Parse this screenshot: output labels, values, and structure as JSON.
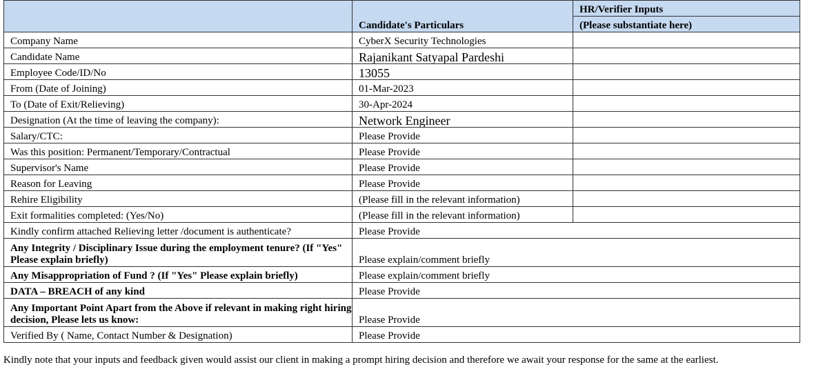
{
  "header": {
    "col2": "Candidate's Particulars",
    "col3_line1": "HR/Verifier Inputs",
    "col3_line2": "(Please substantiate here)"
  },
  "rows": [
    {
      "label": "Company Name",
      "value": "CyberX Security Technologies"
    },
    {
      "label": "Candidate Name",
      "value": "Rajanikant Satyapal Pardeshi"
    },
    {
      "label": "Employee Code/ID/No",
      "value": "13055"
    },
    {
      "label": "From (Date of Joining)",
      "value": "01-Mar-2023"
    },
    {
      "label": "To (Date of Exit/Relieving)",
      "value": "30-Apr-2024"
    },
    {
      "label": "Designation (At the time of leaving the company):",
      "value": "Network Engineer"
    },
    {
      "label": "Salary/CTC:",
      "value": "Please Provide"
    },
    {
      "label": "Was this position: Permanent/Temporary/Contractual",
      "value": "Please Provide"
    },
    {
      "label": "Supervisor's Name",
      "value": "Please Provide"
    },
    {
      "label": "Reason for Leaving",
      "value": "Please Provide"
    },
    {
      "label": "Rehire Eligibility",
      "value": "(Please fill in the relevant information)"
    },
    {
      "label": "Exit formalities completed: (Yes/No)",
      "value": "(Please fill in the relevant information)"
    },
    {
      "label": "Kindly confirm attached Relieving letter /document is authenticate?",
      "value": "Please Provide"
    },
    {
      "label": "Any Integrity / Disciplinary Issue during the employment tenure? (If \"Yes\" Please explain briefly)",
      "value": "Please explain/comment briefly"
    },
    {
      "label": "Any Misappropriation of Fund ? (If \"Yes\" Please explain briefly)",
      "value": "Please explain/comment briefly"
    },
    {
      "label": "DATA – BREACH of any kind",
      "value": "Please Provide"
    },
    {
      "label": "Any Important Point Apart from the Above if relevant in making right hiring decision, Please lets us know:",
      "value": "Please Provide"
    },
    {
      "label": "Verified By ( Name, Contact Number & Designation)",
      "value": "Please Provide"
    }
  ],
  "footer_note": "Kindly note that your inputs and feedback given would assist our client in making a prompt hiring decision and therefore we await your response for the same at the earliest."
}
